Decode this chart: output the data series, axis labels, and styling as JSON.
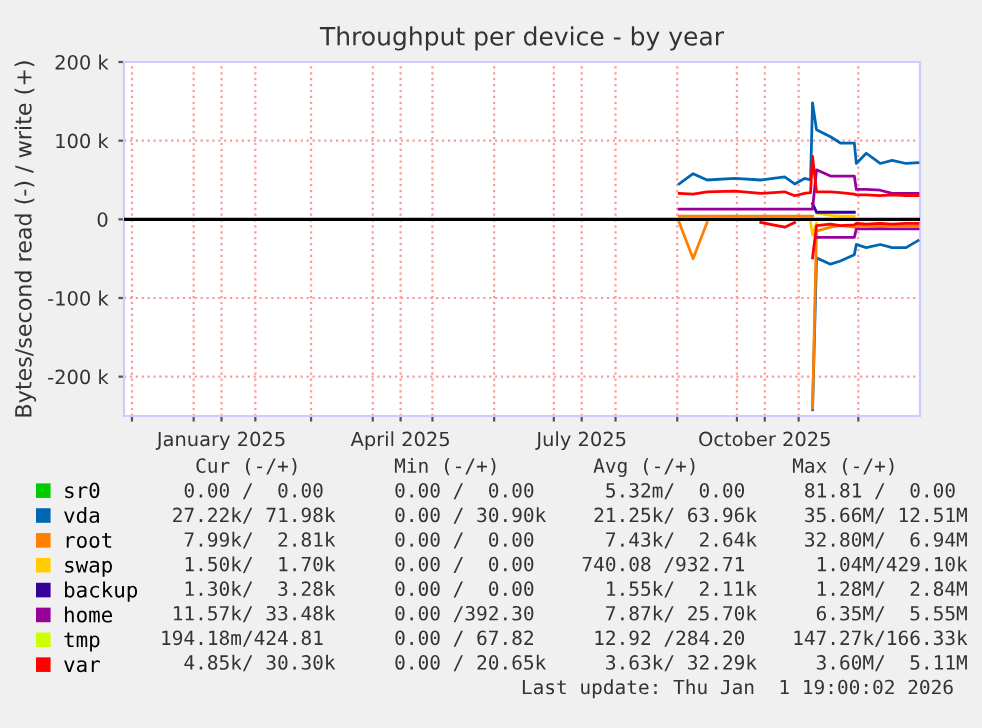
{
  "chart_data": {
    "type": "line",
    "title": "Throughput per device - by year",
    "ylabel": "Bytes/second read (-) / write (+)",
    "x": [
      "2025-09-02",
      "2025-09-09",
      "2025-09-16",
      "2025-09-30",
      "2025-10-13",
      "2025-10-25",
      "2025-10-30",
      "2025-11-04",
      "2025-11-07",
      "2025-11-08",
      "2025-11-10",
      "2025-11-17",
      "2025-11-22",
      "2025-11-29",
      "2025-11-30",
      "2025-12-05",
      "2025-12-12",
      "2025-12-18",
      "2025-12-25",
      "2025-12-31"
    ],
    "series": [
      {
        "name": "sr0",
        "color": "#00cc00",
        "values": [
          null,
          null,
          null,
          null,
          null,
          null,
          null,
          null,
          null,
          null,
          null,
          null,
          null,
          null,
          null,
          null,
          null,
          null,
          null,
          null
        ]
      },
      {
        "name": "vda",
        "color": "#0066b3",
        "values": [
          45000,
          58000,
          50000,
          52000,
          50000,
          54000,
          45000,
          52000,
          50000,
          148000,
          114000,
          105000,
          97000,
          97000,
          71000,
          84000,
          71000,
          75000,
          71000,
          72000
        ]
      },
      {
        "name": "root",
        "color": "#ff8000",
        "values": [
          4000,
          4000,
          4000,
          4000,
          4000,
          4000,
          4000,
          4000,
          4000,
          4000,
          null,
          null,
          null,
          null,
          null,
          null,
          null,
          null,
          null,
          null
        ]
      },
      {
        "name": "swap",
        "color": "#ffcc00",
        "values": [
          null,
          null,
          null,
          null,
          null,
          null,
          null,
          null,
          null,
          null,
          8000,
          5000,
          4000,
          4000,
          null,
          null,
          null,
          null,
          null,
          null
        ]
      },
      {
        "name": "backup",
        "color": "#330099",
        "values": [
          null,
          null,
          null,
          null,
          null,
          null,
          null,
          null,
          null,
          20000,
          9000,
          9000,
          9000,
          9000,
          null,
          null,
          null,
          null,
          null,
          null
        ]
      },
      {
        "name": "home",
        "color": "#990099",
        "values": [
          13000,
          13000,
          13000,
          13000,
          13000,
          13000,
          13000,
          13000,
          13000,
          13000,
          63000,
          55000,
          55000,
          55000,
          38000,
          38000,
          37000,
          33000,
          33000,
          33000
        ]
      },
      {
        "name": "tmp",
        "color": "#ccff00",
        "values": [
          null,
          null,
          null,
          null,
          null,
          null,
          null,
          null,
          null,
          null,
          null,
          null,
          null,
          null,
          null,
          null,
          null,
          null,
          null,
          null
        ]
      },
      {
        "name": "var",
        "color": "#ff0000",
        "values": [
          33000,
          32000,
          35000,
          36000,
          33000,
          35000,
          30000,
          33000,
          34000,
          80000,
          35000,
          35000,
          34000,
          32000,
          31000,
          31000,
          30000,
          31000,
          30000,
          30000
        ]
      },
      {
        "color": "#0066b3",
        "values": [
          null,
          null,
          null,
          null,
          null,
          null,
          null,
          null,
          null,
          -242000,
          -49000,
          -57000,
          -53000,
          -45000,
          -32000,
          -36000,
          -32000,
          -36000,
          -36000,
          -27000
        ]
      },
      {
        "color": "#ff8000",
        "values": [
          -4000,
          -50000,
          -4000,
          null,
          null,
          null,
          null,
          null,
          null,
          -240000,
          -15000,
          -10000,
          -8000,
          -10000,
          -8000,
          -8000,
          -9000,
          -8000,
          -8000,
          -8000
        ]
      },
      {
        "color": "#ffcc00",
        "values": [
          null,
          null,
          null,
          null,
          null,
          null,
          null,
          null,
          -4000,
          -20000,
          -5000,
          null,
          null,
          null,
          null,
          null,
          null,
          null,
          null,
          null
        ]
      },
      {
        "color": "#990099",
        "values": [
          null,
          null,
          null,
          null,
          null,
          null,
          null,
          null,
          null,
          null,
          -23000,
          -23000,
          -23000,
          -23000,
          -12000,
          -12000,
          -12000,
          -12000,
          -12000,
          -12000
        ]
      },
      {
        "color": "#ff0000",
        "values": [
          null,
          null,
          null,
          null,
          -4000,
          -10000,
          -4000,
          null,
          null,
          -49000,
          -8000,
          -6000,
          -8000,
          -7000,
          -5000,
          -6000,
          -5000,
          -6000,
          -5000,
          -5000
        ]
      }
    ],
    "xlim": [
      "2024-11-27",
      "2026-01-01"
    ],
    "xticks": [
      {
        "value": "2024-12-01",
        "label": null
      },
      {
        "value": "2025-01-01",
        "label": null
      },
      {
        "value": "2025-01-15",
        "label": "January 2025"
      },
      {
        "value": "2025-02-01",
        "label": null
      },
      {
        "value": "2025-03-01",
        "label": null
      },
      {
        "value": "2025-04-01",
        "label": null
      },
      {
        "value": "2025-04-15",
        "label": "April 2025"
      },
      {
        "value": "2025-05-01",
        "label": null
      },
      {
        "value": "2025-06-01",
        "label": null
      },
      {
        "value": "2025-07-01",
        "label": null
      },
      {
        "value": "2025-07-15",
        "label": "July 2025"
      },
      {
        "value": "2025-08-01",
        "label": null
      },
      {
        "value": "2025-09-01",
        "label": null
      },
      {
        "value": "2025-10-01",
        "label": null
      },
      {
        "value": "2025-10-15",
        "label": "October 2025"
      },
      {
        "value": "2025-11-01",
        "label": null
      },
      {
        "value": "2025-12-01",
        "label": null
      }
    ],
    "ylim": [
      -250000,
      200000
    ],
    "yticks": [
      {
        "value": -200000,
        "label": "-200 k"
      },
      {
        "value": -100000,
        "label": "-100 k"
      },
      0,
      {
        "value": 100000,
        "label": "100 k"
      },
      {
        "value": 200000,
        "label": "200 k"
      }
    ],
    "ref_lines": [
      {
        "axis": "y",
        "value": 0,
        "color": "#000000"
      }
    ],
    "grid": true,
    "legend": "bottom",
    "marker": "none",
    "line_style": "solid",
    "annotations": [
      "   Cur (-/+)        Min (-/+)        Avg (-/+)        Max (-/+)",
      "  0.00 /  0.00      0.00 /  0.00      5.32m/  0.00     81.81 /  0.00",
      " 27.22k/ 71.98k     0.00 / 30.90k    21.25k/ 63.96k    35.66M/ 12.51M",
      "  7.99k/  2.81k     0.00 /  0.00      7.43k/  2.64k    32.80M/  6.94M",
      "  1.50k/  1.70k     0.00 /  0.00    740.08 /932.71      1.04M/429.10k",
      "  1.30k/  3.28k     0.00 /  0.00      1.55k/  2.11k     1.28M/  2.84M",
      " 11.57k/ 33.48k     0.00 /392.30      7.87k/ 25.70k     6.35M/  5.55M",
      "194.18m/424.81      0.00 / 67.82     12.92 /284.20    147.27k/166.33k",
      "  4.85k/ 30.30k     0.00 / 20.65k     3.63k/ 32.29k     3.60M/  5.11M",
      "Last update: Thu Jan  1 19:00:02 2026"
    ]
  }
}
